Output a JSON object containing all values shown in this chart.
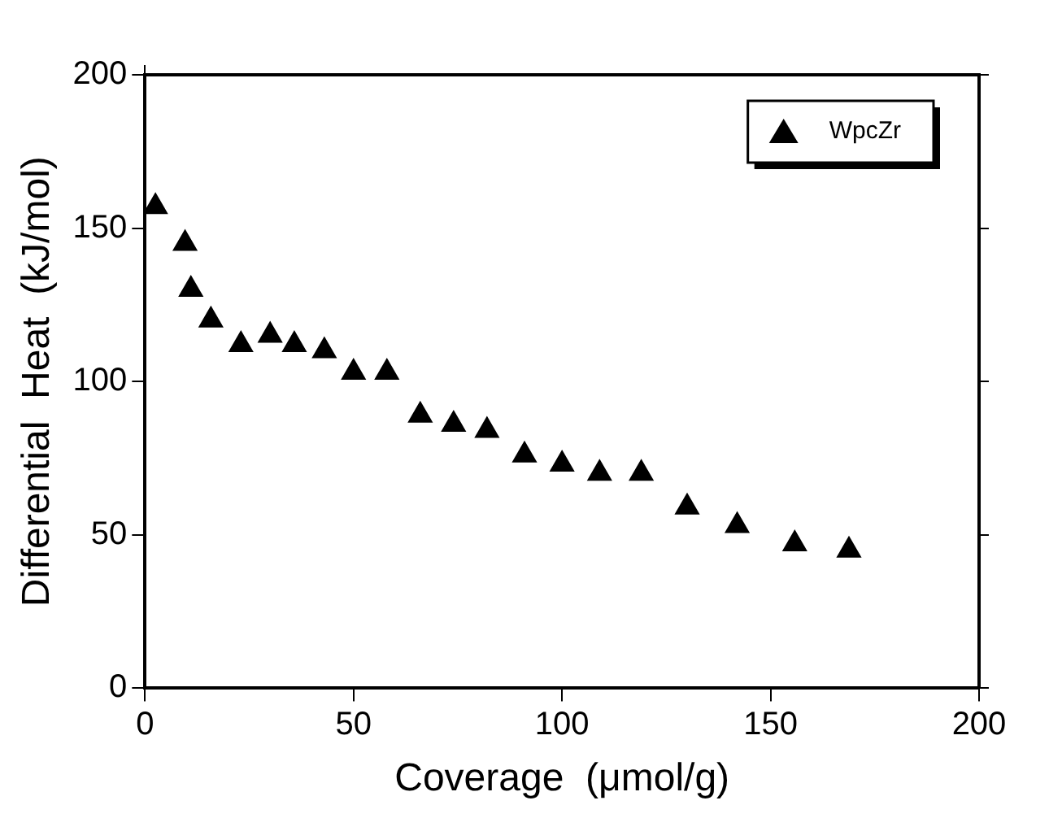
{
  "chart_data": {
    "type": "scatter",
    "xlabel": "Coverage  (μmol/g)",
    "ylabel": "Differential  Heat  (kJ/mol)",
    "xlim": [
      0,
      200
    ],
    "xticks": [
      0,
      50,
      100,
      150,
      200
    ],
    "ylim": [
      0,
      200
    ],
    "yticks": [
      0,
      50,
      100,
      150,
      200
    ],
    "grid": false,
    "legend": "top right",
    "marker": "triangle",
    "series": [
      {
        "name": "WpcZr",
        "color": "#000000",
        "x": [
          2.5,
          9.6,
          11,
          15.8,
          23,
          30,
          35.8,
          43,
          50,
          58,
          66,
          74,
          82,
          91,
          100,
          109,
          119,
          130,
          142,
          155.8,
          168.8
        ],
        "values": [
          157,
          145,
          130,
          120,
          112,
          115,
          112,
          110,
          103,
          103,
          89,
          86,
          84,
          76,
          73,
          70,
          70,
          59,
          53,
          47,
          45
        ]
      }
    ]
  }
}
